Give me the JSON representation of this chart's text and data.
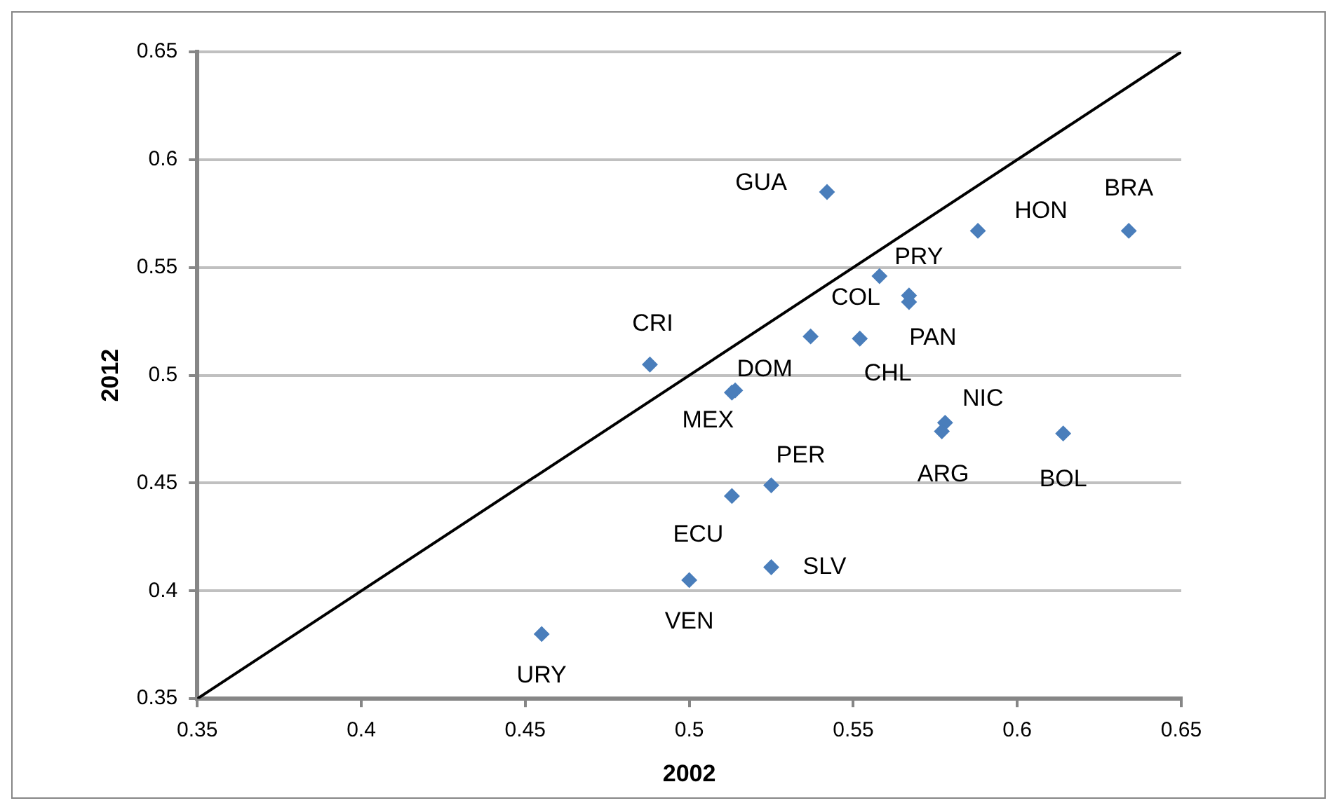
{
  "chart_data": {
    "type": "scatter",
    "xlabel": "2002",
    "ylabel": "2012",
    "xlim": [
      0.35,
      0.65
    ],
    "xticks": [
      0.35,
      0.4,
      0.45,
      0.5,
      0.55,
      0.6,
      0.65
    ],
    "ylim": [
      0.35,
      0.65
    ],
    "yticks": [
      0.35,
      0.4,
      0.45,
      0.5,
      0.55,
      0.6,
      0.65
    ],
    "grid": "y",
    "legend": false,
    "series": [
      {
        "color": "#4a7ebb",
        "marker": "diamond",
        "x": [
          0.542,
          0.588,
          0.634,
          0.558,
          0.567,
          0.567,
          0.552,
          0.537,
          0.488,
          0.514,
          0.513,
          0.578,
          0.577,
          0.614,
          0.525,
          0.513,
          0.525,
          0.5,
          0.455
        ],
        "values": [
          0.585,
          0.567,
          0.567,
          0.546,
          0.537,
          0.534,
          0.517,
          0.518,
          0.505,
          0.493,
          0.492,
          0.478,
          0.474,
          0.473,
          0.449,
          0.444,
          0.411,
          0.405,
          0.38
        ]
      },
      {
        "type": "line",
        "color": "#000000",
        "marker": "none",
        "x": [
          0.35,
          0.65
        ],
        "values": [
          0.35,
          0.65
        ]
      }
    ],
    "annotations": [
      {
        "text": "GUA",
        "x": 0.542,
        "y": 0.585
      },
      {
        "text": "HON",
        "x": 0.588,
        "y": 0.567
      },
      {
        "text": "BRA",
        "x": 0.634,
        "y": 0.567
      },
      {
        "text": "PRY",
        "x": 0.558,
        "y": 0.546
      },
      {
        "text": "COL",
        "x": 0.567,
        "y": 0.537
      },
      {
        "text": "PAN",
        "x": 0.567,
        "y": 0.534
      },
      {
        "text": "CHL",
        "x": 0.552,
        "y": 0.517
      },
      {
        "text": "CRI",
        "x": 0.488,
        "y": 0.505
      },
      {
        "text": "DOM",
        "x": 0.514,
        "y": 0.493
      },
      {
        "text": "MEX",
        "x": 0.513,
        "y": 0.492
      },
      {
        "text": "NIC",
        "x": 0.578,
        "y": 0.478
      },
      {
        "text": "ARG",
        "x": 0.577,
        "y": 0.474
      },
      {
        "text": "BOL",
        "x": 0.614,
        "y": 0.473
      },
      {
        "text": "PER",
        "x": 0.525,
        "y": 0.449
      },
      {
        "text": "ECU",
        "x": 0.513,
        "y": 0.444
      },
      {
        "text": "SLV",
        "x": 0.525,
        "y": 0.411
      },
      {
        "text": "VEN",
        "x": 0.5,
        "y": 0.405
      },
      {
        "text": "URY",
        "x": 0.455,
        "y": 0.38
      }
    ]
  }
}
